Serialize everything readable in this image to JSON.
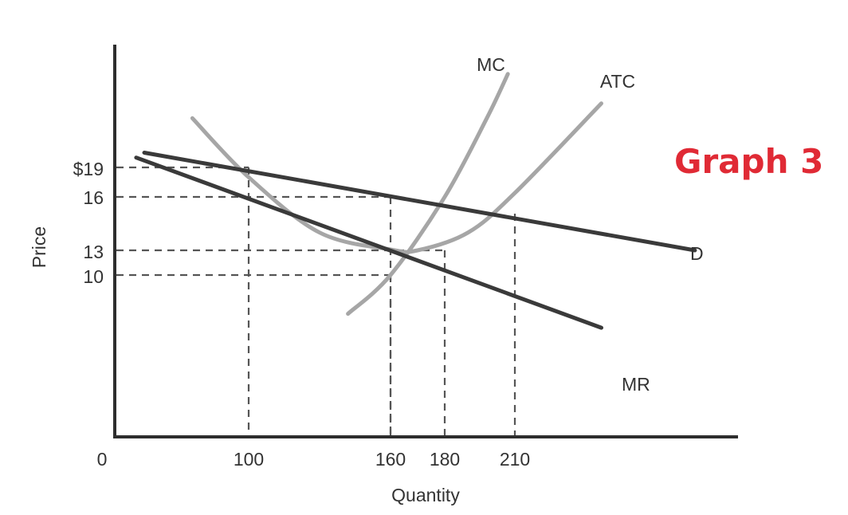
{
  "graph_title": "Graph 3",
  "colors": {
    "dark_line": "#3a3a3a",
    "light_curve": "#a6a6a6",
    "guide": "#555555",
    "title": "#e02a35"
  },
  "chart_data": {
    "type": "line",
    "xlabel": "Quantity",
    "ylabel": "Price",
    "x_ticks": [
      "0",
      "100",
      "160",
      "180",
      "210"
    ],
    "y_ticks": [
      "$19",
      "16",
      "13",
      "10"
    ],
    "series": [
      {
        "name": "D",
        "kind": "straight",
        "points": [
          [
            22,
            20.5
          ],
          [
            287,
            13.0
          ]
        ]
      },
      {
        "name": "MR",
        "kind": "straight",
        "points": [
          [
            16,
            20.0
          ],
          [
            247,
            3.6
          ]
        ]
      },
      {
        "name": "MC",
        "kind": "curve",
        "points": [
          [
            142,
            5.3
          ],
          [
            160,
            10.0
          ],
          [
            180,
            16.0
          ],
          [
            198,
            24.0
          ],
          [
            207,
            28.5
          ]
        ]
      },
      {
        "name": "ATC",
        "kind": "curve",
        "points": [
          [
            58,
            24.0
          ],
          [
            100,
            18.0
          ],
          [
            130,
            14.0
          ],
          [
            160,
            13.05
          ],
          [
            170,
            13.0
          ],
          [
            190,
            14.0
          ],
          [
            210,
            16.4
          ],
          [
            247,
            25.5
          ]
        ]
      }
    ],
    "guides": [
      {
        "x": 100,
        "y": 19
      },
      {
        "x": 160,
        "y": 16
      },
      {
        "x": 180,
        "y": 13
      },
      {
        "x": 160,
        "y": 10
      },
      {
        "x": 210
      }
    ]
  }
}
